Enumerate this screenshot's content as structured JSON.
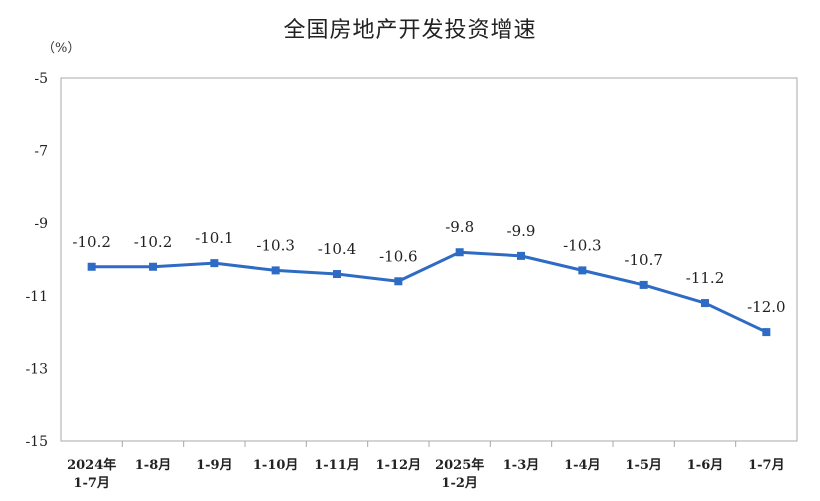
{
  "chart_data": {
    "type": "line",
    "title": "全国房地产开发投资增速",
    "ylabel": "（%）",
    "xlabel": "",
    "ylim": [
      -15,
      -5
    ],
    "yticks": [
      -5,
      -7,
      -9,
      -11,
      -13,
      -15
    ],
    "categories": [
      [
        "2024年",
        "1-7月"
      ],
      [
        "1-8月"
      ],
      [
        "1-9月"
      ],
      [
        "1-10月"
      ],
      [
        "1-11月"
      ],
      [
        "1-12月"
      ],
      [
        "2025年",
        "1-2月"
      ],
      [
        "1-3月"
      ],
      [
        "1-4月"
      ],
      [
        "1-5月"
      ],
      [
        "1-6月"
      ],
      [
        "1-7月"
      ]
    ],
    "values": [
      -10.2,
      -10.2,
      -10.1,
      -10.3,
      -10.4,
      -10.6,
      -9.8,
      -9.9,
      -10.3,
      -10.7,
      -11.2,
      -12.0
    ],
    "data_labels": [
      "-10.2",
      "-10.2",
      "-10.1",
      "-10.3",
      "-10.4",
      "-10.6",
      "-9.8",
      "-9.9",
      "-10.3",
      "-10.7",
      "-11.2",
      "-12.0"
    ],
    "grid": false,
    "legend": "none",
    "line_color": "#2e6bc4"
  }
}
